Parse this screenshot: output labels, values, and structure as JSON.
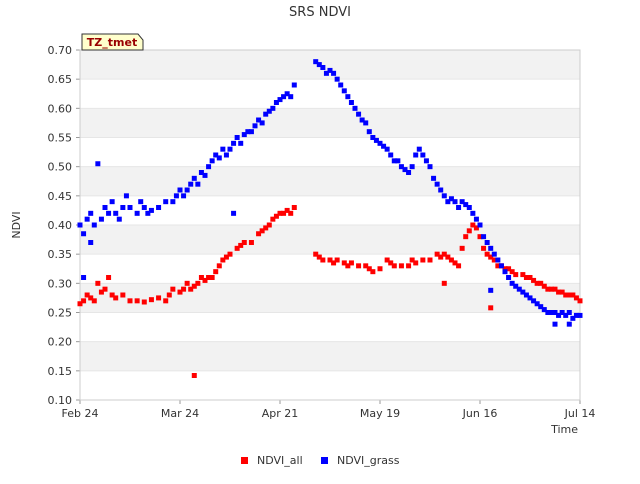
{
  "chart_data": {
    "type": "scatter",
    "title": "SRS NDVI",
    "xlabel": "Time",
    "ylabel": "NDVI",
    "x_units": "days since Feb 24",
    "xlim": [
      0,
      140
    ],
    "ylim": [
      0.1,
      0.7
    ],
    "y_ticks": [
      "0.10",
      "0.15",
      "0.20",
      "0.25",
      "0.30",
      "0.35",
      "0.40",
      "0.45",
      "0.50",
      "0.55",
      "0.60",
      "0.65",
      "0.70"
    ],
    "x_ticks": [
      {
        "label": "Feb 24",
        "x": 0
      },
      {
        "label": "Mar 24",
        "x": 28
      },
      {
        "label": "Apr 21",
        "x": 56
      },
      {
        "label": "May 19",
        "x": 84
      },
      {
        "label": "Jun 16",
        "x": 112
      },
      {
        "label": "Jul 14",
        "x": 140
      }
    ],
    "grid": "alternating horizontal bands",
    "legend_position": "bottom-center",
    "annotation": "TZ_tmet",
    "series": [
      {
        "name": "NDVI_all",
        "color": "#ff0000",
        "points": [
          [
            0,
            0.265
          ],
          [
            1,
            0.27
          ],
          [
            2,
            0.28
          ],
          [
            3,
            0.275
          ],
          [
            4,
            0.27
          ],
          [
            5,
            0.3
          ],
          [
            6,
            0.285
          ],
          [
            7,
            0.29
          ],
          [
            8,
            0.31
          ],
          [
            9,
            0.28
          ],
          [
            10,
            0.275
          ],
          [
            12,
            0.28
          ],
          [
            14,
            0.27
          ],
          [
            16,
            0.27
          ],
          [
            18,
            0.268
          ],
          [
            20,
            0.272
          ],
          [
            22,
            0.275
          ],
          [
            24,
            0.27
          ],
          [
            25,
            0.28
          ],
          [
            26,
            0.29
          ],
          [
            28,
            0.285
          ],
          [
            29,
            0.29
          ],
          [
            30,
            0.3
          ],
          [
            31,
            0.29
          ],
          [
            32,
            0.295
          ],
          [
            33,
            0.3
          ],
          [
            34,
            0.31
          ],
          [
            35,
            0.305
          ],
          [
            36,
            0.31
          ],
          [
            37,
            0.31
          ],
          [
            38,
            0.32
          ],
          [
            39,
            0.33
          ],
          [
            40,
            0.34
          ],
          [
            41,
            0.345
          ],
          [
            42,
            0.35
          ],
          [
            44,
            0.36
          ],
          [
            45,
            0.365
          ],
          [
            46,
            0.37
          ],
          [
            48,
            0.37
          ],
          [
            50,
            0.385
          ],
          [
            51,
            0.39
          ],
          [
            52,
            0.395
          ],
          [
            53,
            0.4
          ],
          [
            54,
            0.41
          ],
          [
            55,
            0.415
          ],
          [
            56,
            0.42
          ],
          [
            57,
            0.42
          ],
          [
            58,
            0.425
          ],
          [
            59,
            0.42
          ],
          [
            60,
            0.43
          ],
          [
            66,
            0.35
          ],
          [
            67,
            0.345
          ],
          [
            68,
            0.34
          ],
          [
            70,
            0.34
          ],
          [
            71,
            0.335
          ],
          [
            72,
            0.34
          ],
          [
            74,
            0.335
          ],
          [
            75,
            0.33
          ],
          [
            76,
            0.335
          ],
          [
            78,
            0.33
          ],
          [
            80,
            0.33
          ],
          [
            81,
            0.325
          ],
          [
            82,
            0.32
          ],
          [
            84,
            0.325
          ],
          [
            86,
            0.34
          ],
          [
            87,
            0.335
          ],
          [
            88,
            0.33
          ],
          [
            90,
            0.33
          ],
          [
            92,
            0.33
          ],
          [
            93,
            0.34
          ],
          [
            94,
            0.335
          ],
          [
            96,
            0.34
          ],
          [
            98,
            0.34
          ],
          [
            100,
            0.35
          ],
          [
            101,
            0.345
          ],
          [
            102,
            0.35
          ],
          [
            103,
            0.345
          ],
          [
            104,
            0.34
          ],
          [
            105,
            0.335
          ],
          [
            106,
            0.33
          ],
          [
            107,
            0.36
          ],
          [
            108,
            0.38
          ],
          [
            109,
            0.39
          ],
          [
            110,
            0.4
          ],
          [
            111,
            0.395
          ],
          [
            112,
            0.38
          ],
          [
            113,
            0.36
          ],
          [
            114,
            0.35
          ],
          [
            115,
            0.345
          ],
          [
            116,
            0.34
          ],
          [
            117,
            0.33
          ],
          [
            118,
            0.33
          ],
          [
            119,
            0.325
          ],
          [
            120,
            0.325
          ],
          [
            121,
            0.32
          ],
          [
            122,
            0.315
          ],
          [
            124,
            0.315
          ],
          [
            125,
            0.31
          ],
          [
            126,
            0.31
          ],
          [
            127,
            0.305
          ],
          [
            128,
            0.3
          ],
          [
            129,
            0.3
          ],
          [
            130,
            0.295
          ],
          [
            131,
            0.29
          ],
          [
            132,
            0.29
          ],
          [
            133,
            0.29
          ],
          [
            134,
            0.285
          ],
          [
            135,
            0.285
          ],
          [
            136,
            0.28
          ],
          [
            137,
            0.28
          ],
          [
            138,
            0.28
          ],
          [
            139,
            0.275
          ],
          [
            140,
            0.27
          ],
          [
            32,
            0.142
          ],
          [
            115,
            0.258
          ],
          [
            102,
            0.3
          ]
        ]
      },
      {
        "name": "NDVI_grass",
        "color": "#0000ff",
        "points": [
          [
            0,
            0.4
          ],
          [
            1,
            0.385
          ],
          [
            2,
            0.41
          ],
          [
            3,
            0.42
          ],
          [
            4,
            0.4
          ],
          [
            5,
            0.505
          ],
          [
            6,
            0.41
          ],
          [
            7,
            0.43
          ],
          [
            8,
            0.42
          ],
          [
            9,
            0.44
          ],
          [
            10,
            0.42
          ],
          [
            11,
            0.41
          ],
          [
            12,
            0.43
          ],
          [
            13,
            0.45
          ],
          [
            14,
            0.43
          ],
          [
            16,
            0.42
          ],
          [
            17,
            0.44
          ],
          [
            18,
            0.43
          ],
          [
            19,
            0.42
          ],
          [
            20,
            0.425
          ],
          [
            22,
            0.43
          ],
          [
            24,
            0.44
          ],
          [
            26,
            0.44
          ],
          [
            27,
            0.45
          ],
          [
            28,
            0.46
          ],
          [
            29,
            0.45
          ],
          [
            30,
            0.46
          ],
          [
            31,
            0.47
          ],
          [
            32,
            0.48
          ],
          [
            33,
            0.47
          ],
          [
            34,
            0.49
          ],
          [
            35,
            0.485
          ],
          [
            36,
            0.5
          ],
          [
            37,
            0.51
          ],
          [
            38,
            0.52
          ],
          [
            39,
            0.515
          ],
          [
            40,
            0.53
          ],
          [
            41,
            0.52
          ],
          [
            42,
            0.53
          ],
          [
            43,
            0.54
          ],
          [
            44,
            0.55
          ],
          [
            45,
            0.54
          ],
          [
            46,
            0.555
          ],
          [
            47,
            0.56
          ],
          [
            48,
            0.56
          ],
          [
            49,
            0.57
          ],
          [
            50,
            0.58
          ],
          [
            51,
            0.575
          ],
          [
            52,
            0.59
          ],
          [
            53,
            0.595
          ],
          [
            54,
            0.6
          ],
          [
            55,
            0.61
          ],
          [
            56,
            0.615
          ],
          [
            57,
            0.62
          ],
          [
            58,
            0.625
          ],
          [
            59,
            0.62
          ],
          [
            60,
            0.64
          ],
          [
            66,
            0.68
          ],
          [
            67,
            0.675
          ],
          [
            68,
            0.67
          ],
          [
            69,
            0.66
          ],
          [
            70,
            0.665
          ],
          [
            71,
            0.66
          ],
          [
            72,
            0.65
          ],
          [
            73,
            0.64
          ],
          [
            74,
            0.63
          ],
          [
            75,
            0.62
          ],
          [
            76,
            0.61
          ],
          [
            77,
            0.6
          ],
          [
            78,
            0.59
          ],
          [
            79,
            0.58
          ],
          [
            80,
            0.575
          ],
          [
            81,
            0.56
          ],
          [
            82,
            0.55
          ],
          [
            83,
            0.545
          ],
          [
            84,
            0.54
          ],
          [
            85,
            0.535
          ],
          [
            86,
            0.53
          ],
          [
            87,
            0.52
          ],
          [
            88,
            0.51
          ],
          [
            89,
            0.51
          ],
          [
            90,
            0.5
          ],
          [
            91,
            0.495
          ],
          [
            92,
            0.49
          ],
          [
            93,
            0.5
          ],
          [
            94,
            0.52
          ],
          [
            95,
            0.53
          ],
          [
            96,
            0.52
          ],
          [
            97,
            0.51
          ],
          [
            98,
            0.5
          ],
          [
            99,
            0.48
          ],
          [
            100,
            0.47
          ],
          [
            101,
            0.46
          ],
          [
            102,
            0.45
          ],
          [
            103,
            0.44
          ],
          [
            104,
            0.445
          ],
          [
            105,
            0.44
          ],
          [
            106,
            0.43
          ],
          [
            107,
            0.44
          ],
          [
            108,
            0.435
          ],
          [
            109,
            0.43
          ],
          [
            110,
            0.42
          ],
          [
            111,
            0.41
          ],
          [
            112,
            0.4
          ],
          [
            113,
            0.38
          ],
          [
            114,
            0.37
          ],
          [
            115,
            0.36
          ],
          [
            116,
            0.35
          ],
          [
            117,
            0.34
          ],
          [
            118,
            0.33
          ],
          [
            119,
            0.32
          ],
          [
            120,
            0.31
          ],
          [
            121,
            0.3
          ],
          [
            122,
            0.295
          ],
          [
            123,
            0.29
          ],
          [
            124,
            0.285
          ],
          [
            125,
            0.28
          ],
          [
            126,
            0.275
          ],
          [
            127,
            0.27
          ],
          [
            128,
            0.265
          ],
          [
            129,
            0.26
          ],
          [
            130,
            0.255
          ],
          [
            131,
            0.25
          ],
          [
            132,
            0.25
          ],
          [
            133,
            0.25
          ],
          [
            134,
            0.245
          ],
          [
            135,
            0.25
          ],
          [
            136,
            0.245
          ],
          [
            137,
            0.25
          ],
          [
            138,
            0.24
          ],
          [
            139,
            0.245
          ],
          [
            140,
            0.245
          ],
          [
            1,
            0.31
          ],
          [
            3,
            0.37
          ],
          [
            115,
            0.288
          ],
          [
            133,
            0.23
          ],
          [
            137,
            0.23
          ],
          [
            43,
            0.42
          ]
        ]
      }
    ]
  }
}
